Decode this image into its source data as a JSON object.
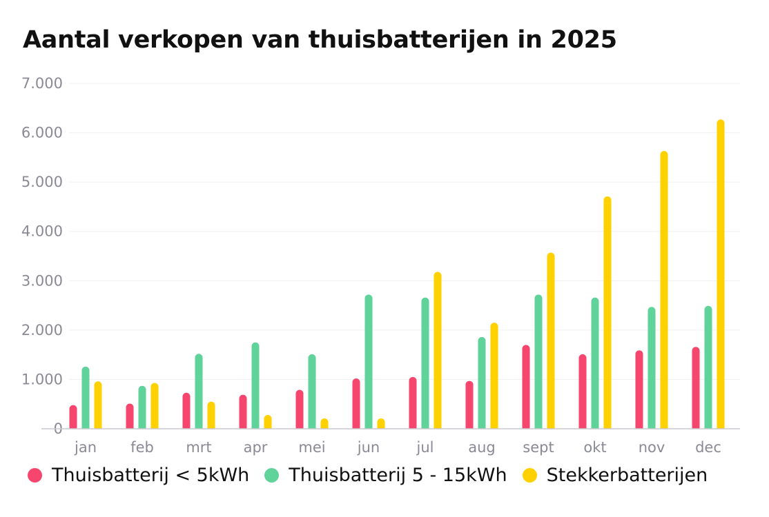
{
  "chart_data": {
    "type": "bar",
    "title": "Aantal verkopen van thuisbatterijen in 2025",
    "xlabel": "",
    "ylabel": "",
    "ylim": [
      0,
      7000
    ],
    "yticks": [
      0,
      1000,
      2000,
      3000,
      4000,
      5000,
      6000,
      7000
    ],
    "ytick_labels": [
      "0",
      "1.000",
      "2.000",
      "3.000",
      "4.000",
      "5.000",
      "6.000",
      "7.000"
    ],
    "categories": [
      "jan",
      "feb",
      "mrt",
      "apr",
      "mei",
      "jun",
      "jul",
      "aug",
      "sept",
      "okt",
      "nov",
      "dec"
    ],
    "series": [
      {
        "name": "Thuisbatterij < 5kWh",
        "color": "#f7466d",
        "values": [
          480,
          510,
          730,
          690,
          790,
          1020,
          1050,
          970,
          1700,
          1510,
          1590,
          1660
        ]
      },
      {
        "name": "Thuisbatterij 5 - 15kWh",
        "color": "#5fd39a",
        "values": [
          1260,
          870,
          1520,
          1750,
          1510,
          2720,
          2660,
          1860,
          2720,
          2660,
          2470,
          2490
        ]
      },
      {
        "name": "Stekkerbatterijen",
        "color": "#ffd100",
        "values": [
          960,
          930,
          550,
          280,
          210,
          210,
          3180,
          2150,
          3570,
          4710,
          5630,
          6270
        ]
      }
    ],
    "grid": true,
    "legend_position": "bottom"
  }
}
